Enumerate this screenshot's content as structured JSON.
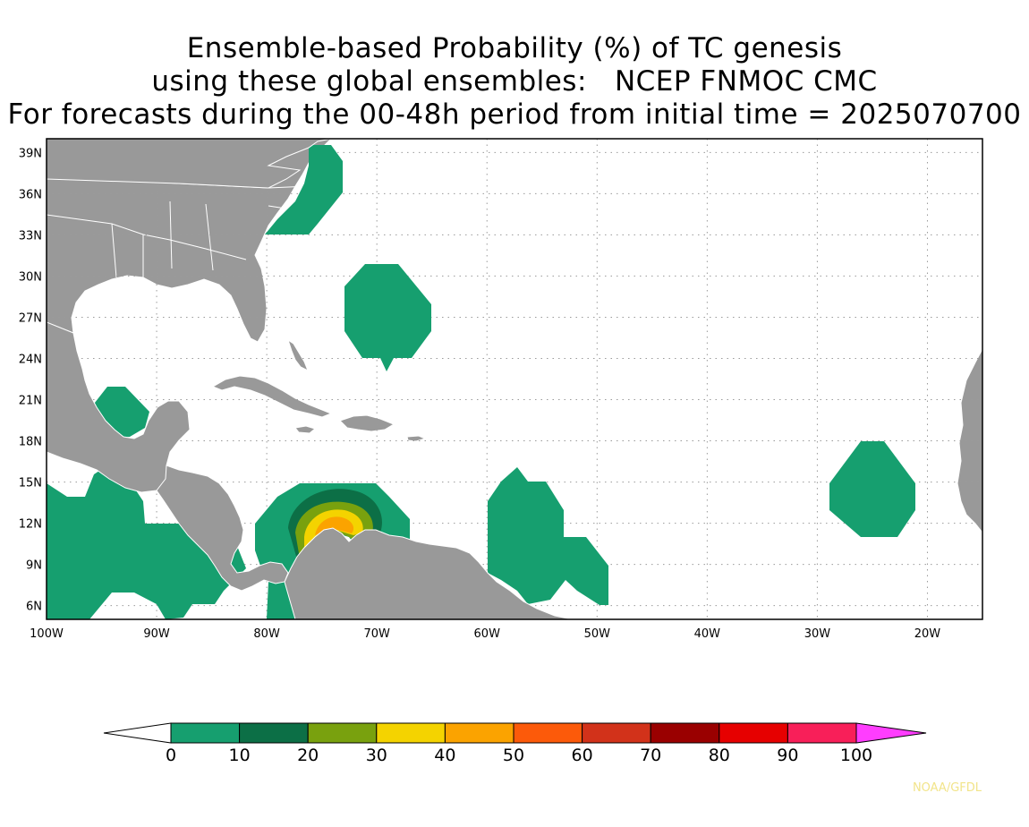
{
  "title": {
    "line1": "Ensemble-based Probability (%) of TC genesis",
    "line2": "using these global ensembles:   NCEP FNMOC CMC",
    "line3": "For forecasts during the 00-48h period from initial time = 2025070700"
  },
  "map": {
    "lon_range": [
      -100,
      -15
    ],
    "lat_range": [
      5,
      40
    ],
    "lat_ticks": [
      "39N",
      "36N",
      "33N",
      "30N",
      "27N",
      "24N",
      "21N",
      "18N",
      "15N",
      "12N",
      "9N",
      "6N"
    ],
    "lon_ticks": [
      "100W",
      "90W",
      "80W",
      "70W",
      "60W",
      "50W",
      "40W",
      "30W",
      "20W"
    ],
    "land_color": "#999999",
    "ocean_color": "#ffffff",
    "grid": "dotted"
  },
  "colorbar": {
    "levels": [
      "0",
      "10",
      "20",
      "30",
      "40",
      "50",
      "60",
      "70",
      "80",
      "90",
      "100"
    ],
    "colors": [
      "#169f6f",
      "#0c6f46",
      "#79a10e",
      "#f4d300",
      "#fba300",
      "#fc5a0a",
      "#d2321a",
      "#9a0000",
      "#e60000",
      "#f81f59"
    ],
    "low_extend_color": "#ffffff",
    "high_extend_color": "#ff3dfe"
  },
  "genesis_regions": [
    {
      "name": "near Cape Hatteras",
      "max_probability_bin": "0-10"
    },
    {
      "name": "east of Bahamas",
      "max_probability_bin": "0-10"
    },
    {
      "name": "Bay of Campeche",
      "max_probability_bin": "0-10"
    },
    {
      "name": "eastern Pacific off Central America",
      "max_probability_bin": "0-10"
    },
    {
      "name": "southern Caribbean",
      "max_probability_bin": "40-50"
    },
    {
      "name": "east of Lesser Antilles",
      "max_probability_bin": "0-10"
    },
    {
      "name": "west of Cabo Verde",
      "max_probability_bin": "0-10"
    }
  ],
  "credit": "NOAA/GFDL"
}
